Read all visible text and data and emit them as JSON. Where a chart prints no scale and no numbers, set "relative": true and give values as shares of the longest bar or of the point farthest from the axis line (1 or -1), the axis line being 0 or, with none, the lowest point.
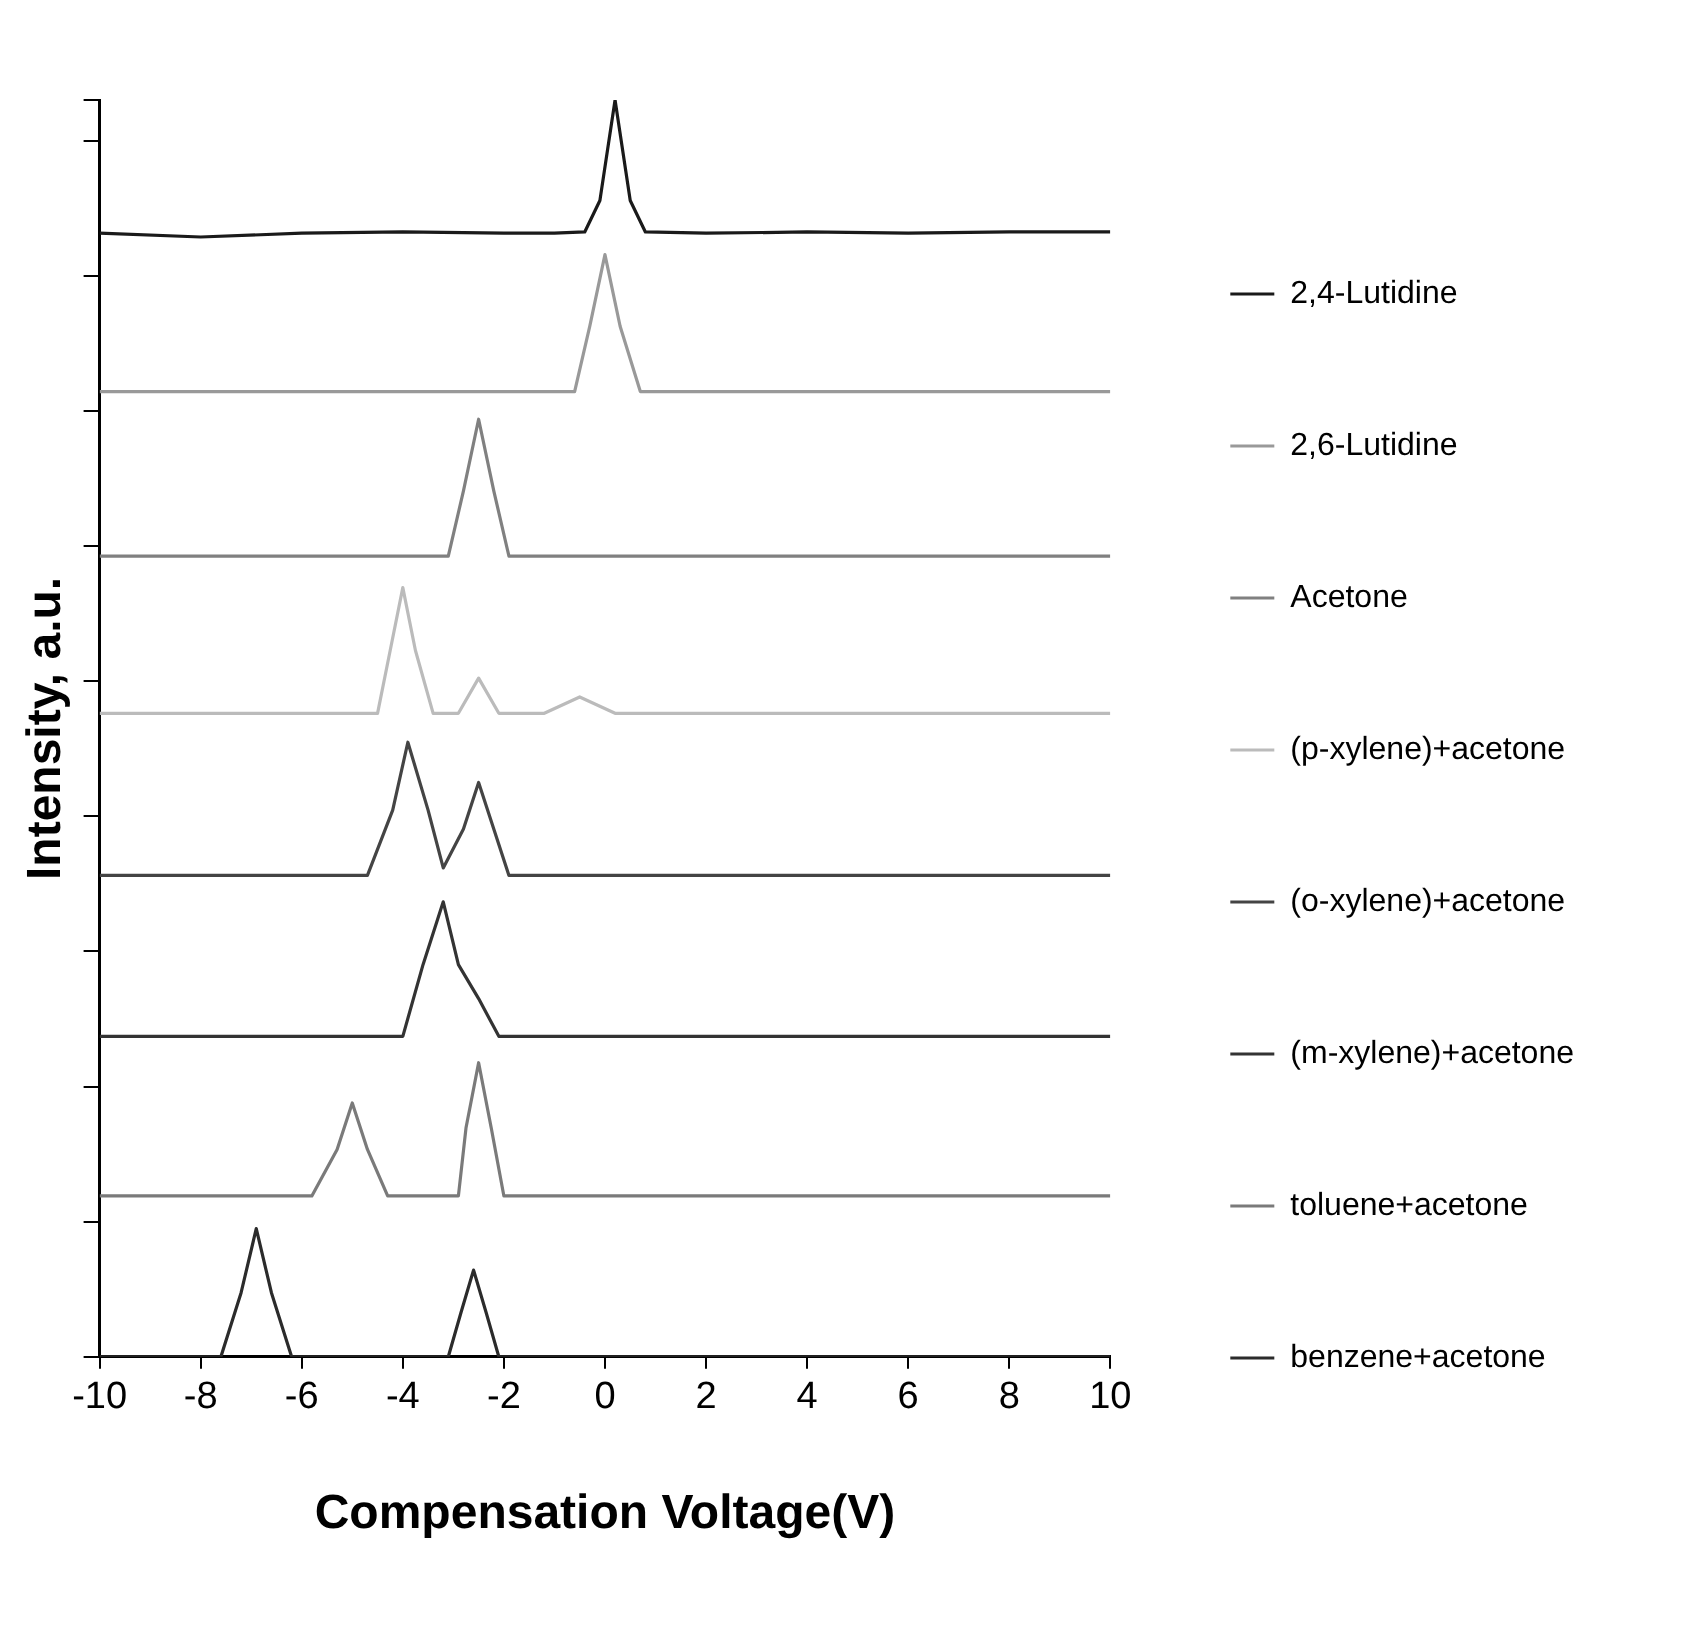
{
  "chart_data": {
    "type": "line",
    "relative": true,
    "xlabel": "Compensation Voltage(V)",
    "ylabel": "Intensity, a.u.",
    "xlim": [
      -10,
      10
    ],
    "xticks": [
      -10,
      -8,
      -6,
      -4,
      -2,
      0,
      2,
      4,
      6,
      8,
      10
    ],
    "grid": false,
    "legend": "right",
    "marker": "none",
    "line_style": "solid",
    "tick_labels": "x",
    "series": [
      {
        "name": "2,4-Lutidine",
        "color": "#1a1a1a",
        "x": [
          -10,
          -8,
          -6,
          -4,
          -2,
          -1,
          -0.4,
          -0.1,
          0.2,
          0.5,
          0.8,
          2,
          4,
          6,
          8,
          10
        ],
        "values": [
          0.894,
          0.891,
          0.894,
          0.895,
          0.894,
          0.894,
          0.895,
          0.92,
          1,
          0.92,
          0.895,
          0.894,
          0.895,
          0.894,
          0.895,
          0.895
        ]
      },
      {
        "name": "2,6-Lutidine",
        "color": "#999999",
        "x": [
          -10,
          -1,
          -0.6,
          -0.3,
          0,
          0.3,
          0.7,
          10
        ],
        "values": [
          0.768,
          0.768,
          0.768,
          0.82,
          0.877,
          0.82,
          0.768,
          0.768
        ]
      },
      {
        "name": "Acetone",
        "color": "#808080",
        "x": [
          -10,
          -5,
          -3.1,
          -2.8,
          -2.5,
          -2.2,
          -1.9,
          2,
          6,
          10
        ],
        "values": [
          0.637,
          0.637,
          0.637,
          0.689,
          0.746,
          0.689,
          0.637,
          0.637,
          0.637,
          0.637
        ]
      },
      {
        "name": "(p-xylene)+acetone",
        "color": "#bbbbbb",
        "x": [
          -10,
          -5,
          -4.5,
          -4.25,
          -4,
          -3.75,
          -3.4,
          -2.9,
          -2.5,
          -2.1,
          -1.2,
          -0.5,
          0.2,
          10
        ],
        "values": [
          0.512,
          0.512,
          0.512,
          0.562,
          0.612,
          0.562,
          0.512,
          0.512,
          0.54,
          0.512,
          0.512,
          0.525,
          0.512,
          0.512
        ]
      },
      {
        "name": "(o-xylene)+acetone",
        "color": "#444444",
        "x": [
          -10,
          -4.7,
          -4.2,
          -3.9,
          -3.5,
          -3.2,
          -2.8,
          -2.5,
          -2.2,
          -1.9,
          10
        ],
        "values": [
          0.383,
          0.383,
          0.435,
          0.489,
          0.435,
          0.389,
          0.42,
          0.457,
          0.42,
          0.383,
          0.383
        ]
      },
      {
        "name": "(m-xylene)+acetone",
        "color": "#333333",
        "x": [
          -10,
          -4,
          -3.6,
          -3.2,
          -2.9,
          -2.5,
          -2.1,
          10
        ],
        "values": [
          0.255,
          0.255,
          0.312,
          0.362,
          0.312,
          0.285,
          0.255,
          0.255
        ]
      },
      {
        "name": "toluene+acetone",
        "color": "#7a7a7a",
        "x": [
          -10,
          -5.8,
          -5.3,
          -5,
          -4.7,
          -4.3,
          -2.9,
          -2.75,
          -2.5,
          -2.25,
          -2,
          10
        ],
        "values": [
          0.128,
          0.128,
          0.165,
          0.202,
          0.165,
          0.128,
          0.128,
          0.182,
          0.234,
          0.182,
          0.128,
          0.128
        ]
      },
      {
        "name": "benzene+acetone",
        "color": "#2b2b2b",
        "x": [
          -10,
          -7.6,
          -7.2,
          -6.9,
          -6.6,
          -6.2,
          -3.1,
          -2.85,
          -2.6,
          -2.35,
          -2.1,
          10
        ],
        "values": [
          0,
          0,
          0.051,
          0.102,
          0.051,
          0,
          0,
          0.035,
          0.069,
          0.035,
          0,
          0
        ]
      }
    ]
  }
}
